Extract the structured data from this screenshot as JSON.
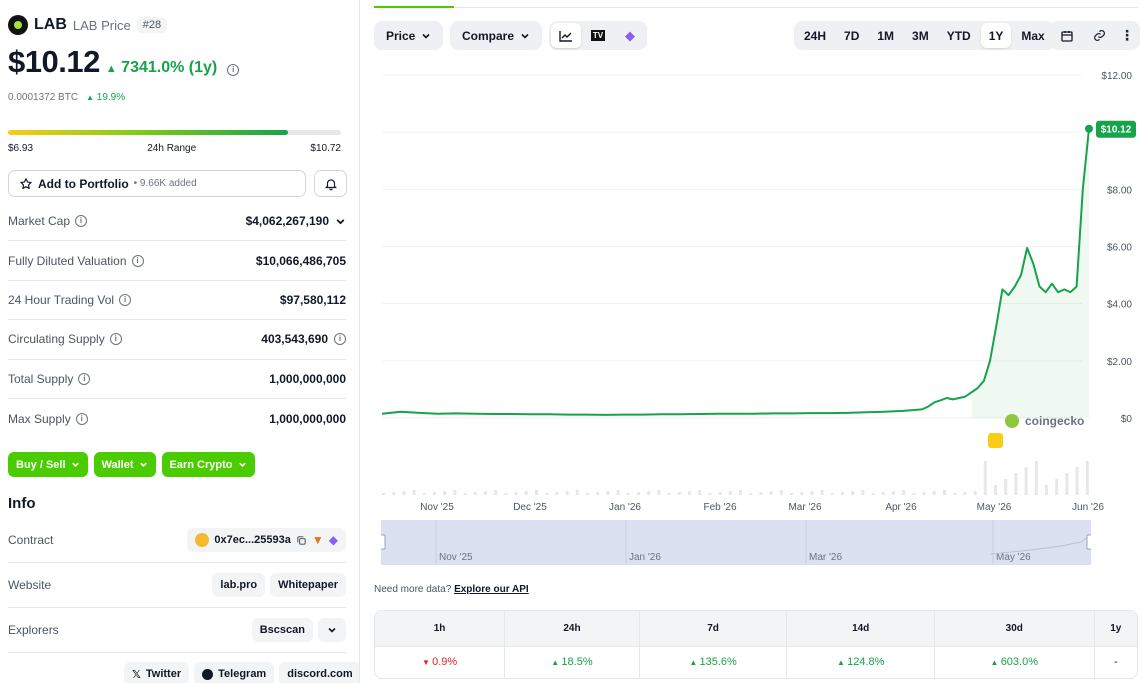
{
  "coin": {
    "symbol": "LAB",
    "name": "LAB Price",
    "rank": "#28",
    "price": "$10.12",
    "change": "7341.0% (1y)",
    "btc_price": "0.0001372 BTC",
    "btc_change": "19.9%"
  },
  "range": {
    "low": "$6.93",
    "label": "24h Range",
    "high": "$10.72",
    "position": 0.84
  },
  "portfolio": {
    "label": "Add to Portfolio",
    "sub": "• 9.66K added"
  },
  "stats": [
    {
      "label": "Market Cap",
      "value": "$4,062,267,190"
    },
    {
      "label": "Fully Diluted Valuation",
      "value": "$10,066,486,705"
    },
    {
      "label": "24 Hour Trading Vol",
      "value": "$97,580,112"
    },
    {
      "label": "Circulating Supply",
      "value": "403,543,690"
    },
    {
      "label": "Total Supply",
      "value": "1,000,000,000"
    },
    {
      "label": "Max Supply",
      "value": "1,000,000,000"
    }
  ],
  "actions": [
    "Buy / Sell",
    "Wallet",
    "Earn Crypto"
  ],
  "info": {
    "title": "Info",
    "contract_label": "Contract",
    "contract_value": "0x7ec...25593a",
    "website_label": "Website",
    "website_links": [
      "lab.pro",
      "Whitepaper"
    ],
    "explorers_label": "Explorers",
    "explorer": "Bscscan",
    "socials": [
      "Twitter",
      "Telegram",
      "discord.com"
    ]
  },
  "toolbar": {
    "price": "Price",
    "compare": "Compare",
    "ranges": [
      "24H",
      "7D",
      "1M",
      "3M",
      "YTD",
      "1Y",
      "Max"
    ],
    "active_range": "1Y"
  },
  "chart_data": {
    "type": "line",
    "y_ticks": [
      "$12.00",
      "$10.00",
      "$8.00",
      "$6.00",
      "$4.00",
      "$2.00",
      "$0"
    ],
    "ylim": [
      0,
      12
    ],
    "x_ticks": [
      "Nov '25",
      "Dec '25",
      "Jan '26",
      "Feb '26",
      "Mar '26",
      "Apr '26",
      "May '26",
      "Jun '26"
    ],
    "nav_ticks": [
      "Nov '25",
      "Jan '26",
      "Mar '26",
      "May '26"
    ],
    "current_label": "$10.12",
    "watermark": "coingecko",
    "color": "#16a34a",
    "series": [
      {
        "values": [
          0.15,
          0.22,
          0.18,
          0.15,
          0.16,
          0.15,
          0.14,
          0.14,
          0.13,
          0.13,
          0.12,
          0.12,
          0.11,
          0.12,
          0.12,
          0.13,
          0.13,
          0.14,
          0.15,
          0.15,
          0.15,
          0.16,
          0.16,
          0.17,
          0.17,
          0.18,
          0.2,
          0.22,
          0.25,
          0.3,
          0.4,
          0.55,
          0.62,
          0.7,
          0.65,
          0.7,
          0.75,
          0.9,
          1.05,
          1.3,
          2.0,
          3.2,
          4.5,
          4.3,
          4.6,
          5.0,
          5.95,
          5.4,
          4.6,
          4.4,
          4.7,
          4.4,
          4.5,
          4.4,
          4.6,
          8.0,
          10.12
        ]
      }
    ]
  },
  "api_note": {
    "text": "Need more data?",
    "link": "Explore our API"
  },
  "performance": {
    "headers": [
      "1h",
      "24h",
      "7d",
      "14d",
      "30d",
      "1y"
    ],
    "values": [
      {
        "v": "0.9%",
        "dir": "down"
      },
      {
        "v": "18.5%",
        "dir": "up"
      },
      {
        "v": "135.6%",
        "dir": "up"
      },
      {
        "v": "124.8%",
        "dir": "up"
      },
      {
        "v": "603.0%",
        "dir": "up"
      },
      {
        "v": "-",
        "dir": "none"
      }
    ]
  }
}
